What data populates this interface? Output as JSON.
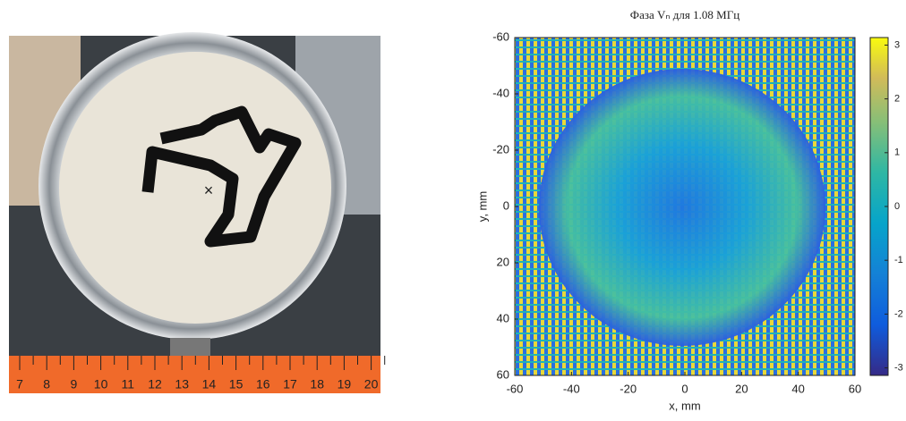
{
  "photo": {
    "ruler_labels": [
      "7",
      "8",
      "9",
      "10",
      "11",
      "12",
      "13",
      "14",
      "15",
      "16",
      "17",
      "18",
      "19",
      "20"
    ]
  },
  "chart_data": {
    "type": "heatmap",
    "title": "Фаза Vₙ для 1.08 МГц",
    "x_label": "x, mm",
    "y_label": "y, mm",
    "xlim": [
      -60,
      60
    ],
    "xticks": [
      -60,
      -40,
      -20,
      0,
      20,
      40,
      60
    ],
    "ylim": [
      -60,
      60
    ],
    "yticks": [
      -60,
      -40,
      -20,
      0,
      20,
      40,
      60
    ],
    "y_inverted": true,
    "colormap": "parula",
    "clim": [
      -3.14,
      3.14
    ],
    "cticks": [
      3,
      2,
      1,
      0,
      -1,
      -2,
      -3
    ]
  }
}
